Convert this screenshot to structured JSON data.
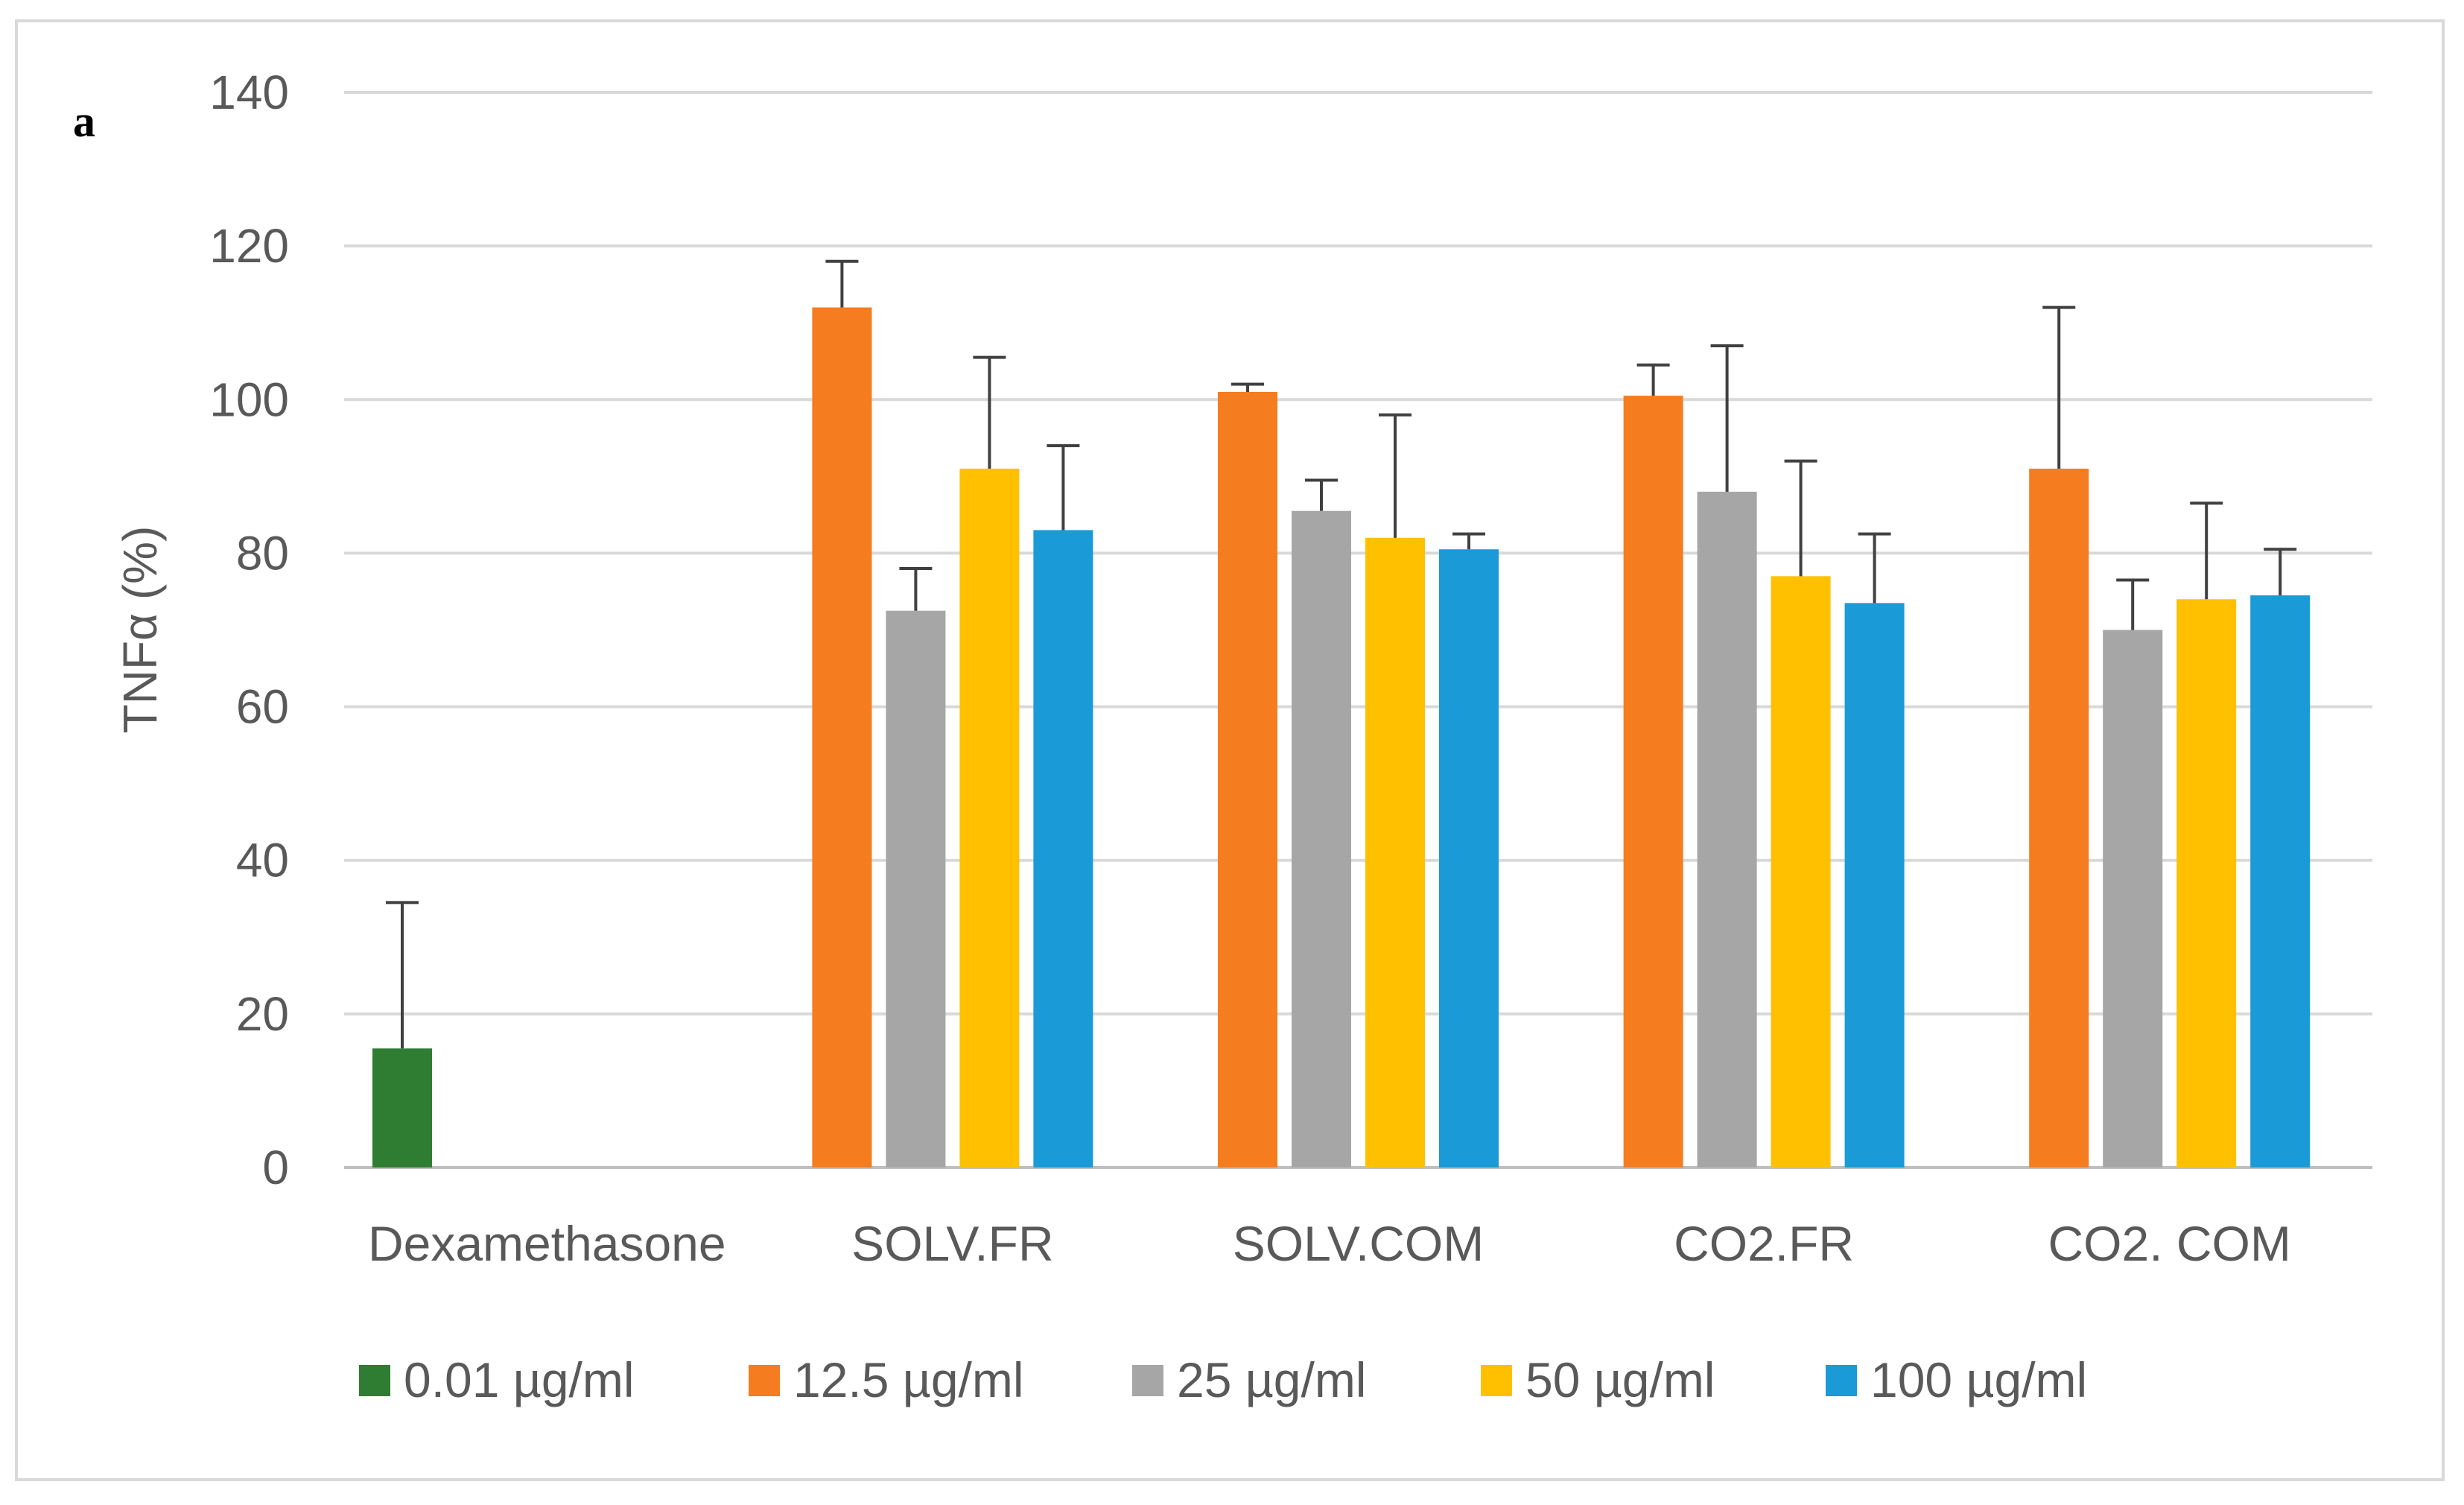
{
  "panel_label": "a",
  "colors": {
    "0.01 µg/ml": "#2e7d32",
    "12.5 µg/ml": "#f57c1f",
    "25 µg/ml": "#a6a6a6",
    "50 µg/ml": "#ffc000",
    "100 µg/ml": "#1a9ad6",
    "grid": "#d9d9d9",
    "axis_text": "#595959",
    "error_bar": "#404040",
    "border": "#d9d9d9"
  },
  "chart_data": {
    "type": "bar",
    "title": "",
    "xlabel": "",
    "ylabel": "TNFα (%)",
    "ylim": [
      0,
      140
    ],
    "yticks": [
      0,
      20,
      40,
      60,
      80,
      100,
      120,
      140
    ],
    "grid": true,
    "legend_position": "bottom",
    "categories": [
      "Dexamethasone",
      "SOLV.FR",
      "SOLV.COM",
      "CO2.FR",
      "CO2. COM"
    ],
    "series": [
      {
        "name": "0.01 µg/ml",
        "values": [
          15.5,
          null,
          null,
          null,
          null
        ],
        "errors": [
          19,
          null,
          null,
          null,
          null
        ]
      },
      {
        "name": "12.5 µg/ml",
        "values": [
          null,
          112,
          101,
          100.5,
          91
        ],
        "errors": [
          null,
          6,
          1,
          4,
          21
        ]
      },
      {
        "name": "25 µg/ml",
        "values": [
          null,
          72.5,
          85.5,
          88,
          70
        ],
        "errors": [
          null,
          5.5,
          4,
          19,
          6.5
        ]
      },
      {
        "name": "50 µg/ml",
        "values": [
          null,
          91,
          82,
          77,
          74
        ],
        "errors": [
          null,
          14.5,
          16,
          15,
          12.5
        ]
      },
      {
        "name": "100 µg/ml",
        "values": [
          null,
          83,
          80.5,
          73.5,
          74.5
        ],
        "errors": [
          null,
          11,
          2,
          9,
          6
        ]
      }
    ]
  }
}
